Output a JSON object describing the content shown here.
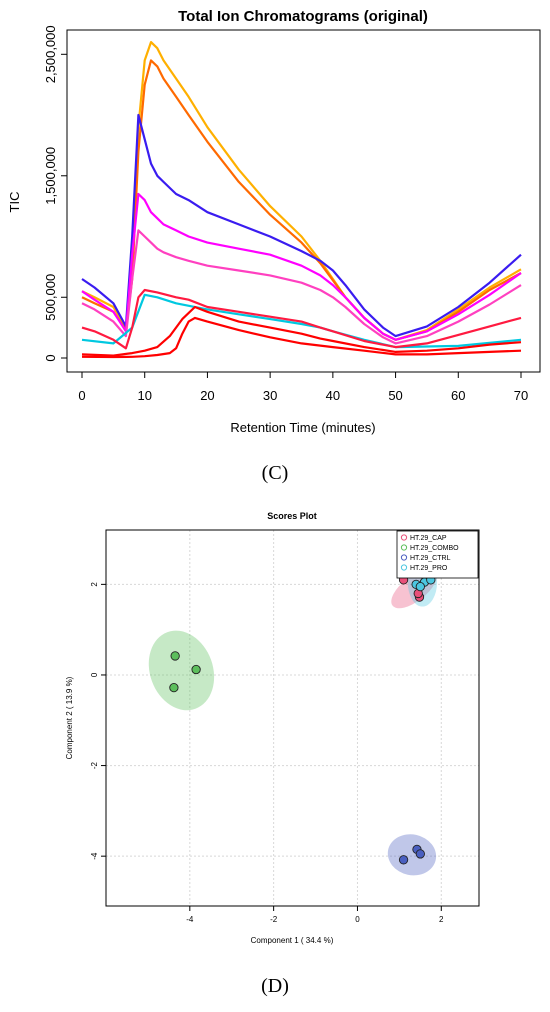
{
  "panels": {
    "c_label": "(C)",
    "d_label": "(D)"
  },
  "chart_data": [
    {
      "type": "line",
      "title": "Total Ion Chromatograms (original)",
      "xlabel": "Retention Time (minutes)",
      "ylabel": "TIC",
      "xlim": [
        0,
        70
      ],
      "ylim": [
        0,
        2700000
      ],
      "x_ticks": [
        0,
        10,
        20,
        30,
        40,
        50,
        60,
        70
      ],
      "y_ticks": [
        0,
        500000,
        1500000,
        2500000
      ],
      "x_tick_labels": [
        "0",
        "10",
        "20",
        "30",
        "40",
        "50",
        "60",
        "70"
      ],
      "y_tick_labels": [
        "0",
        "500,000",
        "1,500,000",
        "2,500,000"
      ],
      "grid": false,
      "legend": "none",
      "series": [
        {
          "color": "#ffb000",
          "x": [
            0,
            2,
            5,
            7,
            8,
            9,
            10,
            11,
            12,
            13,
            15,
            17,
            20,
            25,
            30,
            35,
            38,
            40,
            42,
            45,
            48,
            50,
            55,
            60,
            65,
            70
          ],
          "y": [
            550000,
            500000,
            420000,
            250000,
            700000,
            1900000,
            2450000,
            2600000,
            2550000,
            2450000,
            2300000,
            2150000,
            1900000,
            1550000,
            1250000,
            1000000,
            800000,
            650000,
            500000,
            330000,
            200000,
            150000,
            230000,
            400000,
            580000,
            730000
          ]
        },
        {
          "color": "#ff6a00",
          "x": [
            0,
            2,
            5,
            7,
            8,
            9,
            10,
            11,
            12,
            13,
            15,
            17,
            20,
            25,
            30,
            35,
            38,
            40,
            42,
            45,
            48,
            50,
            55,
            60,
            65,
            70
          ],
          "y": [
            500000,
            450000,
            380000,
            230000,
            650000,
            1700000,
            2250000,
            2450000,
            2400000,
            2300000,
            2150000,
            2000000,
            1780000,
            1450000,
            1180000,
            950000,
            780000,
            640000,
            500000,
            330000,
            200000,
            150000,
            220000,
            380000,
            560000,
            700000
          ]
        },
        {
          "color": "#3a1cf0",
          "x": [
            0,
            2,
            5,
            7,
            8,
            9,
            10,
            11,
            12,
            13,
            15,
            17,
            20,
            25,
            30,
            35,
            38,
            40,
            42,
            45,
            48,
            50,
            55,
            60,
            65,
            70
          ],
          "y": [
            650000,
            580000,
            450000,
            260000,
            1000000,
            2000000,
            1800000,
            1600000,
            1500000,
            1450000,
            1350000,
            1300000,
            1200000,
            1100000,
            1000000,
            880000,
            800000,
            720000,
            600000,
            400000,
            250000,
            180000,
            260000,
            420000,
            620000,
            850000
          ]
        },
        {
          "color": "#ff00ff",
          "x": [
            0,
            2,
            5,
            7,
            8,
            9,
            10,
            11,
            12,
            13,
            15,
            17,
            20,
            25,
            30,
            35,
            38,
            40,
            42,
            45,
            48,
            50,
            55,
            60,
            65,
            70
          ],
          "y": [
            550000,
            480000,
            380000,
            220000,
            850000,
            1350000,
            1300000,
            1200000,
            1150000,
            1100000,
            1050000,
            1000000,
            950000,
            900000,
            850000,
            760000,
            680000,
            600000,
            500000,
            330000,
            200000,
            150000,
            220000,
            360000,
            520000,
            700000
          ]
        },
        {
          "color": "#ff40c0",
          "x": [
            0,
            2,
            5,
            7,
            8,
            9,
            10,
            11,
            12,
            13,
            15,
            17,
            20,
            25,
            30,
            35,
            38,
            40,
            42,
            45,
            48,
            50,
            55,
            60,
            65,
            70
          ],
          "y": [
            450000,
            400000,
            300000,
            180000,
            650000,
            1050000,
            1000000,
            950000,
            900000,
            870000,
            830000,
            800000,
            760000,
            720000,
            680000,
            620000,
            560000,
            500000,
            420000,
            280000,
            170000,
            120000,
            180000,
            300000,
            440000,
            600000
          ]
        },
        {
          "color": "#00c8e0",
          "x": [
            0,
            5,
            8,
            10,
            12,
            15,
            20,
            25,
            30,
            35,
            38,
            40,
            45,
            50,
            60,
            70
          ],
          "y": [
            150000,
            120000,
            250000,
            520000,
            500000,
            450000,
            400000,
            360000,
            320000,
            280000,
            250000,
            220000,
            150000,
            90000,
            100000,
            150000
          ]
        },
        {
          "color": "#ff1a40",
          "x": [
            0,
            2,
            5,
            7,
            8,
            9,
            10,
            12,
            15,
            17,
            20,
            25,
            30,
            35,
            38,
            40,
            45,
            50,
            55,
            60,
            65,
            70
          ],
          "y": [
            250000,
            220000,
            150000,
            80000,
            250000,
            500000,
            560000,
            540000,
            500000,
            480000,
            420000,
            380000,
            340000,
            300000,
            250000,
            220000,
            140000,
            90000,
            120000,
            190000,
            260000,
            330000
          ]
        },
        {
          "color": "#ff0000",
          "x": [
            0,
            5,
            8,
            10,
            12,
            14,
            16,
            18,
            20,
            25,
            30,
            35,
            38,
            40,
            45,
            50,
            55,
            60,
            65,
            70
          ],
          "y": [
            30000,
            20000,
            40000,
            60000,
            90000,
            180000,
            320000,
            420000,
            380000,
            300000,
            250000,
            200000,
            160000,
            140000,
            90000,
            50000,
            60000,
            80000,
            110000,
            130000
          ]
        },
        {
          "color": "#ff0000",
          "x": [
            0,
            5,
            8,
            10,
            12,
            14,
            15,
            16,
            17,
            18,
            20,
            25,
            30,
            35,
            40,
            45,
            50,
            55,
            60,
            65,
            70
          ],
          "y": [
            10000,
            8000,
            10000,
            15000,
            25000,
            40000,
            80000,
            200000,
            300000,
            330000,
            300000,
            230000,
            170000,
            120000,
            90000,
            60000,
            30000,
            30000,
            40000,
            50000,
            60000
          ]
        }
      ]
    },
    {
      "type": "scatter",
      "title": "Scores Plot",
      "xlabel": "Component 1 ( 34.4 %)",
      "ylabel": "Component 2 ( 13.9 %)",
      "xlim": [
        -6,
        2.9
      ],
      "ylim": [
        -5.1,
        3.2
      ],
      "x_ticks": [
        -4,
        -2,
        0,
        2
      ],
      "y_ticks": [
        -4,
        -2,
        0,
        2
      ],
      "x_tick_labels": [
        "-4",
        "-2",
        "0",
        "2"
      ],
      "y_tick_labels": [
        "-4",
        "-2",
        "0",
        "2"
      ],
      "grid": true,
      "legend": "top-right",
      "series": [
        {
          "name": "HT.29_CAP",
          "color": "#e8507a",
          "points": [
            [
              1.48,
              1.72
            ],
            [
              1.45,
              1.8
            ],
            [
              1.1,
              2.1
            ]
          ],
          "ellipse": {
            "cx": 1.35,
            "cy": 1.9,
            "rx": 0.65,
            "ry": 0.06,
            "angle": -38
          }
        },
        {
          "name": "HT.29_COMBO",
          "color": "#5cbf5c",
          "points": [
            [
              -4.35,
              0.42
            ],
            [
              -3.85,
              0.12
            ],
            [
              -4.38,
              -0.28
            ]
          ],
          "ellipse": {
            "cx": -4.2,
            "cy": 0.1,
            "rx": 0.75,
            "ry": 0.9,
            "angle": -20
          }
        },
        {
          "name": "HT.29_CTRL",
          "color": "#4a5fc0",
          "points": [
            [
              1.42,
              -3.85
            ],
            [
              1.5,
              -3.95
            ],
            [
              1.1,
              -4.08
            ]
          ],
          "ellipse": {
            "cx": 1.3,
            "cy": -3.97,
            "rx": 0.58,
            "ry": 0.1,
            "angle": 12
          }
        },
        {
          "name": "HT.29_PRO",
          "color": "#4cc7e0",
          "points": [
            [
              1.4,
              2.0
            ],
            [
              1.6,
              2.05
            ],
            [
              1.75,
              2.1
            ],
            [
              1.5,
              1.95
            ]
          ],
          "ellipse": {
            "cx": 1.55,
            "cy": 2.05,
            "rx": 0.35,
            "ry": 0.12,
            "angle": 0
          }
        }
      ]
    }
  ]
}
